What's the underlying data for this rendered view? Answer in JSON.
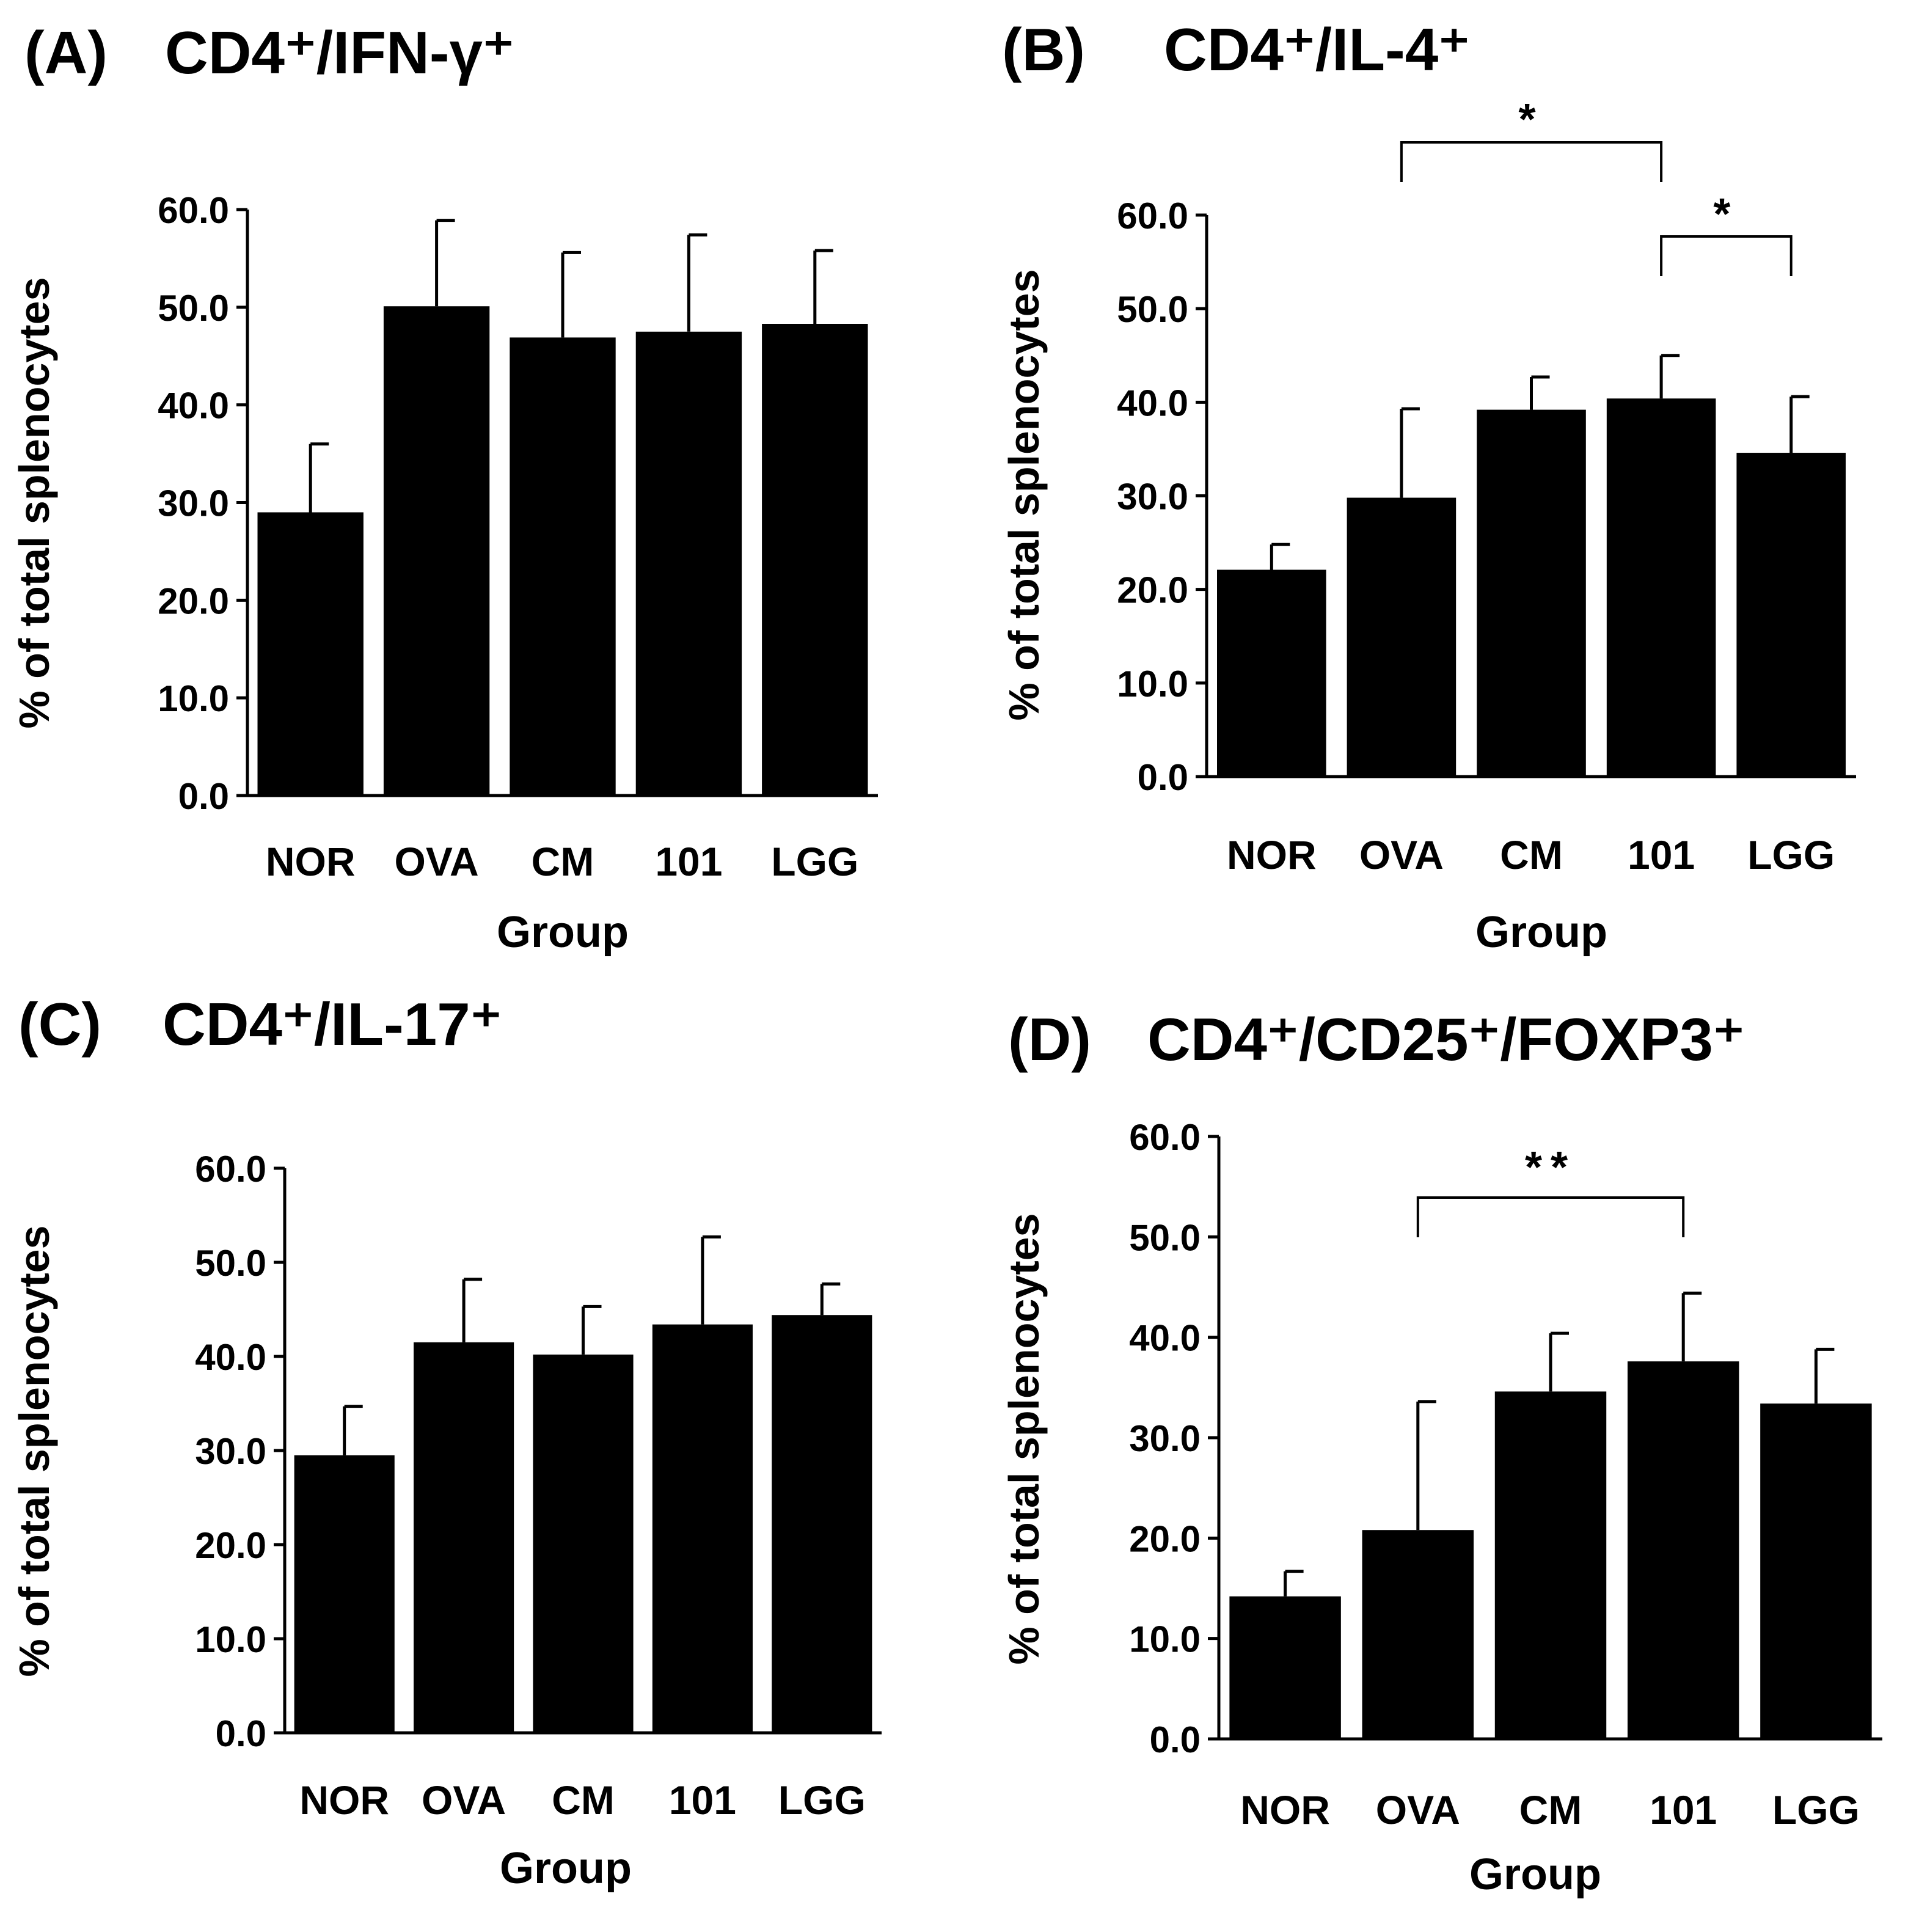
{
  "chart_data": [
    {
      "type": "bar",
      "panel_label": "(A)",
      "title": "CD4⁺/IFN-γ⁺",
      "categories": [
        "NOR",
        "OVA",
        "CM",
        "101",
        "LGG"
      ],
      "values": [
        29.0,
        50.1,
        46.9,
        47.5,
        48.3
      ],
      "errors": [
        7.0,
        8.8,
        8.7,
        9.9,
        7.5
      ],
      "ylim": [
        0,
        60
      ],
      "yticks": [
        "0.0",
        "10.0",
        "20.0",
        "30.0",
        "40.0",
        "50.0",
        "60.0"
      ],
      "xlabel": "Group",
      "ylabel": "% of total splenocytes",
      "significance": []
    },
    {
      "type": "bar",
      "panel_label": "(B)",
      "title": "CD4⁺/IL-4⁺",
      "categories": [
        "NOR",
        "OVA",
        "CM",
        "101",
        "LGG"
      ],
      "values": [
        22.1,
        29.8,
        39.2,
        40.4,
        34.6
      ],
      "errors": [
        2.7,
        9.5,
        3.5,
        4.6,
        6.0
      ],
      "ylim": [
        0,
        60
      ],
      "yticks": [
        "0.0",
        "10.0",
        "20.0",
        "30.0",
        "40.0",
        "50.0",
        "60.0"
      ],
      "xlabel": "Group",
      "ylabel": "% of total splenocytes",
      "significance": [
        {
          "from": "OVA",
          "to": "101",
          "label": "*"
        },
        {
          "from": "101",
          "to": "LGG",
          "label": "*"
        }
      ]
    },
    {
      "type": "bar",
      "panel_label": "(C)",
      "title": "CD4⁺/IL-17⁺",
      "categories": [
        "NOR",
        "OVA",
        "CM",
        "101",
        "LGG"
      ],
      "values": [
        29.5,
        41.5,
        40.2,
        43.4,
        44.4
      ],
      "errors": [
        5.2,
        6.7,
        5.1,
        9.3,
        3.3
      ],
      "ylim": [
        0,
        60
      ],
      "yticks": [
        "0.0",
        "10.0",
        "20.0",
        "30.0",
        "40.0",
        "50.0",
        "60.0"
      ],
      "xlabel": "Group",
      "ylabel": "% of total splenocytes",
      "significance": []
    },
    {
      "type": "bar",
      "panel_label": "(D)",
      "title": "CD4⁺/CD25⁺/FOXP3⁺",
      "categories": [
        "NOR",
        "OVA",
        "CM",
        "101",
        "LGG"
      ],
      "values": [
        14.2,
        20.8,
        34.6,
        37.6,
        33.4
      ],
      "errors": [
        2.5,
        12.8,
        5.8,
        6.8,
        5.4
      ],
      "ylim": [
        0,
        60
      ],
      "yticks": [
        "0.0",
        "10.0",
        "20.0",
        "30.0",
        "40.0",
        "50.0",
        "60.0"
      ],
      "xlabel": "Group",
      "ylabel": "% of total splenocytes",
      "significance": [
        {
          "from": "OVA",
          "to": "101",
          "label": "**"
        }
      ]
    }
  ]
}
